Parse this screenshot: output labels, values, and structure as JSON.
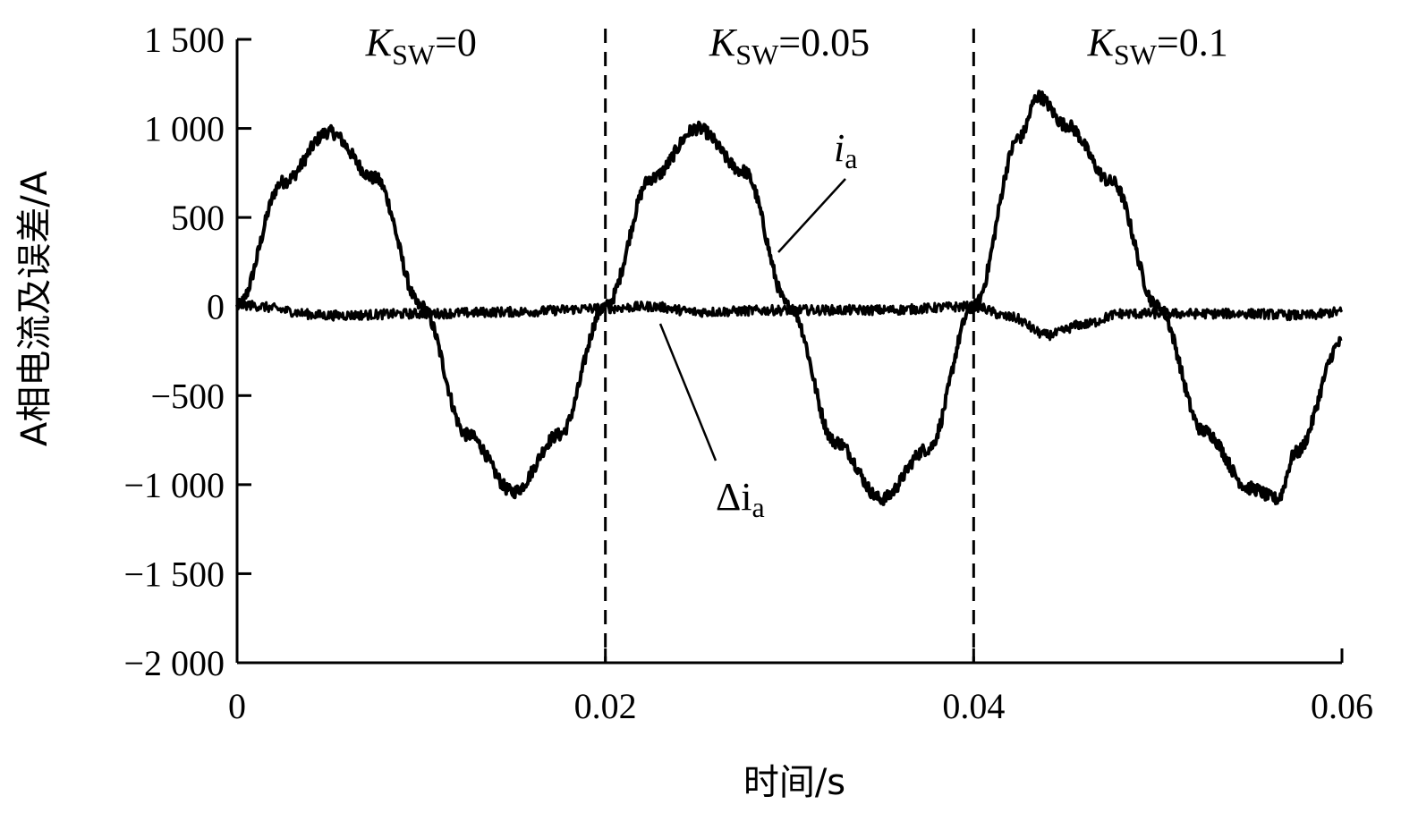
{
  "chart_data": {
    "type": "line",
    "xlabel": "时间/s",
    "ylabel": "A相电流及误差/A",
    "xlim": [
      0,
      0.06
    ],
    "ylim": [
      -2000,
      1500
    ],
    "xticks": [
      {
        "value": 0,
        "label": "0"
      },
      {
        "value": 0.02,
        "label": "0.02"
      },
      {
        "value": 0.04,
        "label": "0.04"
      },
      {
        "value": 0.06,
        "label": "0.06"
      }
    ],
    "yticks": [
      {
        "value": 1500,
        "label": "1 500"
      },
      {
        "value": 1000,
        "label": "1 000"
      },
      {
        "value": 500,
        "label": "500"
      },
      {
        "value": 0,
        "label": "0"
      },
      {
        "value": -500,
        "label": "−500"
      },
      {
        "value": -1000,
        "label": "−1 000"
      },
      {
        "value": -1500,
        "label": "−1 500"
      },
      {
        "value": -2000,
        "label": "−2 000"
      }
    ],
    "grid": false,
    "dividers": [
      0.02,
      0.04
    ],
    "regions": [
      {
        "label_main": "K",
        "label_sub": "SW",
        "label_value": "=0",
        "x_center": 0.01
      },
      {
        "label_main": "K",
        "label_sub": "SW",
        "label_value": "=0.05",
        "x_center": 0.03
      },
      {
        "label_main": "K",
        "label_sub": "SW",
        "label_value": "=0.1",
        "x_center": 0.05
      }
    ],
    "series": [
      {
        "name_main": "i",
        "name_sub": "a",
        "x": [
          0,
          0.0025,
          0.005,
          0.0075,
          0.01,
          0.0125,
          0.015,
          0.0175,
          0.02,
          0.0225,
          0.025,
          0.0275,
          0.03,
          0.0325,
          0.035,
          0.0375,
          0.04,
          0.0425,
          0.0435,
          0.045,
          0.0475,
          0.05,
          0.0525,
          0.055,
          0.0565,
          0.0575,
          0.06
        ],
        "y": [
          0,
          700,
          980,
          720,
          0,
          -720,
          -1040,
          -720,
          0,
          720,
          1000,
          760,
          0,
          -760,
          -1080,
          -800,
          0,
          950,
          1180,
          1020,
          700,
          0,
          -700,
          -1020,
          -1080,
          -820,
          -200
        ]
      },
      {
        "name_main": "Δi",
        "name_sub": "a",
        "x": [
          0,
          0.005,
          0.01,
          0.015,
          0.02,
          0.0225,
          0.025,
          0.03,
          0.035,
          0.04,
          0.042,
          0.044,
          0.046,
          0.048,
          0.05,
          0.055,
          0.058,
          0.06
        ],
        "y": [
          10,
          -50,
          -40,
          -30,
          -10,
          0,
          -30,
          -20,
          -20,
          0,
          -60,
          -160,
          -100,
          -40,
          -40,
          -40,
          -50,
          -30
        ]
      }
    ]
  }
}
